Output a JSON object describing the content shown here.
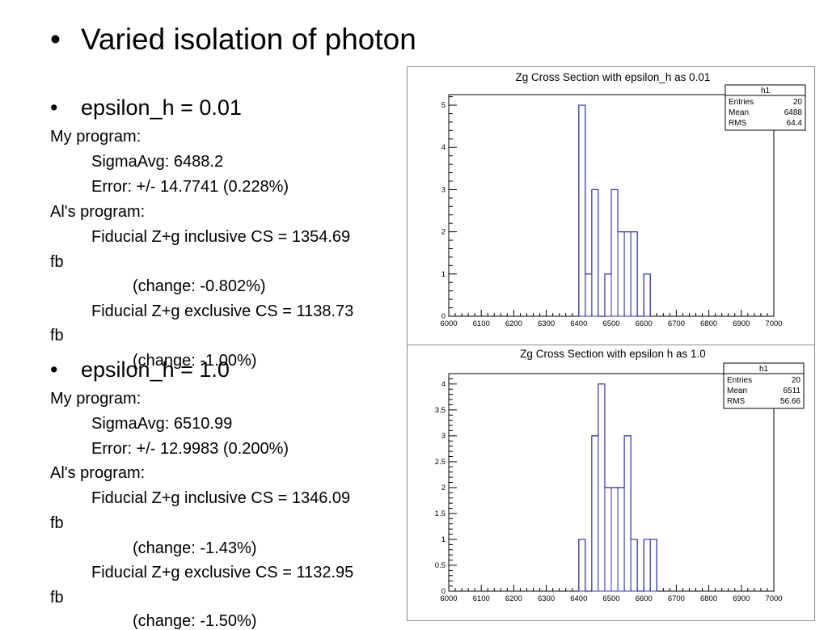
{
  "slide": {
    "title": "Varied isolation of photon",
    "bullet": "•",
    "sections": [
      {
        "heading": "epsilon_h = 0.01",
        "my_program_label": "My program:",
        "sigma_avg": "SigmaAvg: 6488.2",
        "error": "Error: +/- 14.7741 (0.228%)",
        "als_program_label": "Al's program:",
        "inclusive": "Fiducial Z+g inclusive CS = 1354.69",
        "inclusive_unit": "fb",
        "inclusive_change": "(change: -0.802%)",
        "exclusive": "Fiducial Z+g exclusive CS = 1138.73",
        "exclusive_unit": "fb",
        "exclusive_change": "(change: -1.00%)"
      },
      {
        "heading": "epsilon_h = 1.0",
        "my_program_label": "My program:",
        "sigma_avg": "SigmaAvg: 6510.99",
        "error": "Error: +/- 12.9983 (0.200%)",
        "als_program_label": "Al's program:",
        "inclusive": "Fiducial Z+g inclusive CS = 1346.09",
        "inclusive_unit": "fb",
        "inclusive_change": "(change: -1.43%)",
        "exclusive": "Fiducial Z+g exclusive CS = 1132.95",
        "exclusive_unit": "fb",
        "exclusive_change": "(change: -1.50%)"
      }
    ]
  },
  "colors": {
    "histogram_line": "#3a3aa8",
    "axis": "#000000",
    "panel_border": "#8c8c8c"
  },
  "chart_data": [
    {
      "type": "bar",
      "title": "Zg Cross Section with epsilon_h as 0.01",
      "xlabel": "",
      "ylabel": "",
      "xlim": [
        6000,
        7000
      ],
      "ylim": [
        0,
        5.25
      ],
      "xticks": [
        6000,
        6100,
        6200,
        6300,
        6400,
        6500,
        6600,
        6700,
        6800,
        6900,
        7000
      ],
      "yticks": [
        0,
        1,
        2,
        3,
        4,
        5
      ],
      "bin_width": 20,
      "bins": [
        {
          "x": 6400,
          "y": 5
        },
        {
          "x": 6420,
          "y": 1
        },
        {
          "x": 6440,
          "y": 3
        },
        {
          "x": 6460,
          "y": 0
        },
        {
          "x": 6480,
          "y": 1
        },
        {
          "x": 6500,
          "y": 3
        },
        {
          "x": 6520,
          "y": 2
        },
        {
          "x": 6540,
          "y": 2
        },
        {
          "x": 6560,
          "y": 2
        },
        {
          "x": 6580,
          "y": 0
        },
        {
          "x": 6600,
          "y": 1
        }
      ],
      "stats": {
        "name": "h1",
        "rows": [
          {
            "label": "Entries",
            "value": "20"
          },
          {
            "label": "Mean",
            "value": "6488"
          },
          {
            "label": "RMS",
            "value": "64.4"
          }
        ]
      }
    },
    {
      "type": "bar",
      "title": "Zg Cross Section with epsilon h as 1.0",
      "xlabel": "",
      "ylabel": "",
      "xlim": [
        6000,
        7000
      ],
      "ylim": [
        0,
        4.2
      ],
      "xticks": [
        6000,
        6100,
        6200,
        6300,
        6400,
        6500,
        6600,
        6700,
        6800,
        6900,
        7000
      ],
      "yticks": [
        0,
        0.5,
        1,
        1.5,
        2,
        2.5,
        3,
        3.5,
        4
      ],
      "bin_width": 20,
      "bins": [
        {
          "x": 6400,
          "y": 1
        },
        {
          "x": 6420,
          "y": 0
        },
        {
          "x": 6440,
          "y": 3
        },
        {
          "x": 6460,
          "y": 4
        },
        {
          "x": 6480,
          "y": 2
        },
        {
          "x": 6500,
          "y": 2
        },
        {
          "x": 6520,
          "y": 2
        },
        {
          "x": 6540,
          "y": 3
        },
        {
          "x": 6560,
          "y": 1
        },
        {
          "x": 6580,
          "y": 0
        },
        {
          "x": 6600,
          "y": 1
        },
        {
          "x": 6620,
          "y": 1
        }
      ],
      "stats": {
        "name": "h1",
        "rows": [
          {
            "label": "Entries",
            "value": "20"
          },
          {
            "label": "Mean",
            "value": "6511"
          },
          {
            "label": "RMS",
            "value": "56.66"
          }
        ]
      }
    }
  ]
}
